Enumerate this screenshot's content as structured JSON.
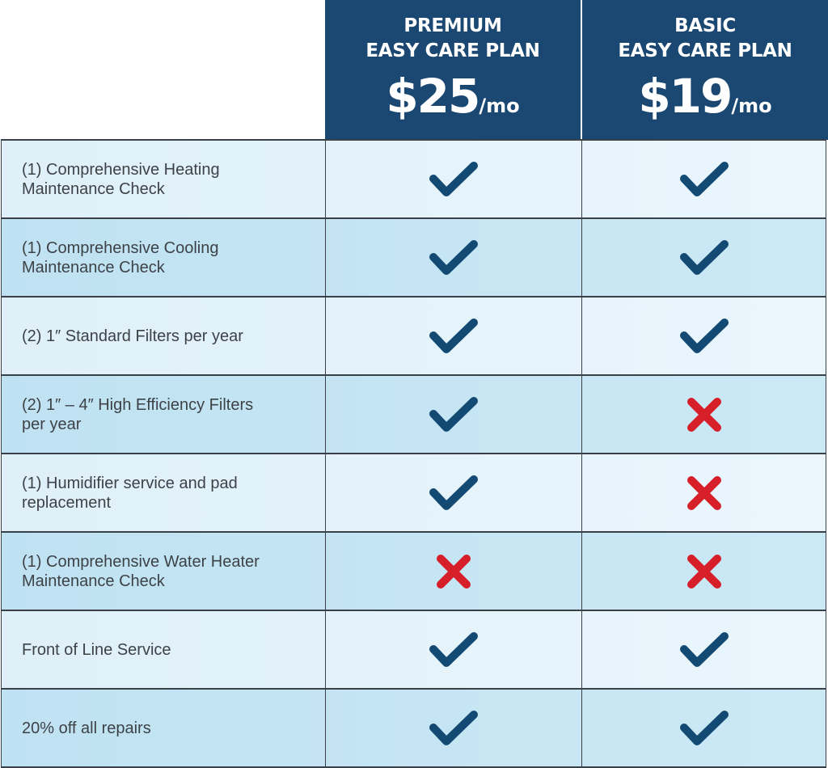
{
  "colors": {
    "header": "#1b4872",
    "check": "#134a73",
    "cross": "#d71f2a"
  },
  "plans": [
    {
      "name_line1": "PREMIUM",
      "name_line2": "EASY CARE PLAN",
      "price": "$25",
      "period": "/mo"
    },
    {
      "name_line1": "BASIC",
      "name_line2": "EASY CARE PLAN",
      "price": "$19",
      "period": "/mo"
    }
  ],
  "features": [
    {
      "label": "(1) Comprehensive Heating Maintenance Check",
      "premium": "check-icon",
      "basic": "check-icon"
    },
    {
      "label": "(1) Comprehensive Cooling Maintenance Check",
      "premium": "check-icon",
      "basic": "check-icon"
    },
    {
      "label": "(2) 1″ Standard Filters per year",
      "premium": "check-icon",
      "basic": "check-icon"
    },
    {
      "label": "(2) 1″ – 4″ High Efficiency Filters per year",
      "premium": "check-icon",
      "basic": "cross-icon"
    },
    {
      "label": "(1) Humidifier service and pad replacement",
      "premium": "check-icon",
      "basic": "cross-icon"
    },
    {
      "label": "(1) Comprehensive Water Heater Maintenance Check",
      "premium": "cross-icon",
      "basic": "cross-icon"
    },
    {
      "label": "Front of Line Service",
      "premium": "check-icon",
      "basic": "check-icon"
    },
    {
      "label": "20% off all repairs",
      "premium": "check-icon",
      "basic": "check-icon"
    }
  ]
}
